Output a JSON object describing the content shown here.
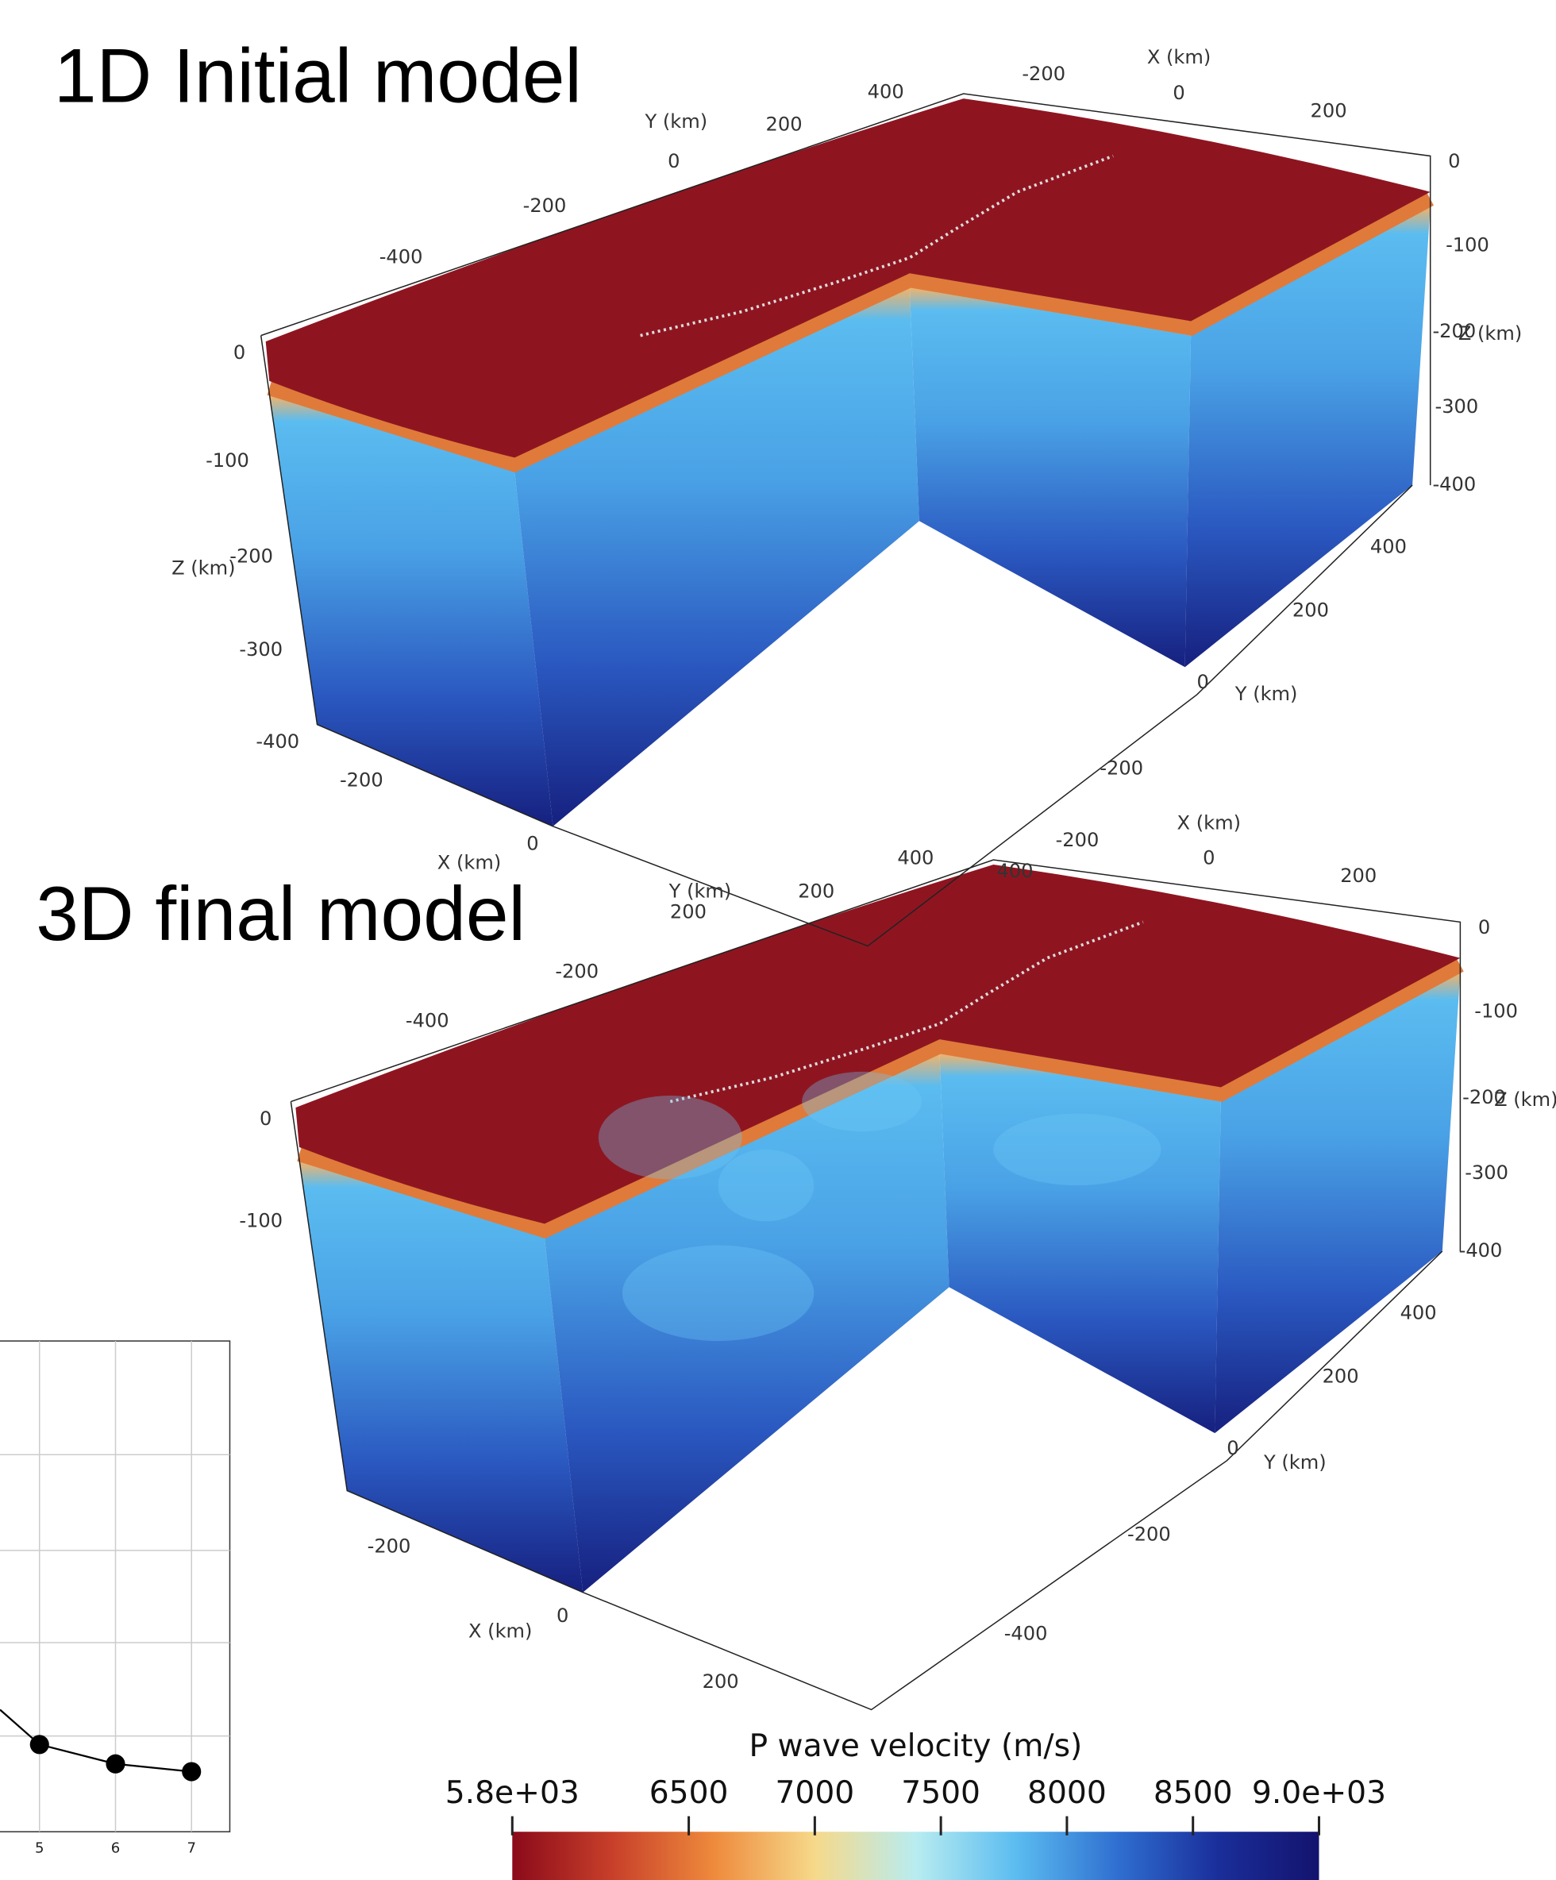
{
  "panels": [
    {
      "title": "1D Initial model",
      "axis_labels": [
        "X (km)",
        "-200",
        "0",
        "200",
        "400",
        "Y (km)",
        "200",
        "0",
        "-200",
        "-400",
        "0",
        "-100",
        "-200",
        "Z (km)",
        "-300",
        "-400",
        "400",
        "200",
        "0",
        "Y (km)",
        "-200",
        "0",
        "-100",
        "-200",
        "Z (km)",
        "-300",
        "-400",
        "-200",
        "0",
        "X (km)"
      ]
    },
    {
      "title": "3D final model",
      "axis_labels": [
        "X (km)",
        "-200",
        "0",
        "200",
        "400",
        "400",
        "Y (km)",
        "200",
        "200",
        "-200",
        "-400",
        "0",
        "-100",
        "-200",
        "Z (km)",
        "-300",
        "-400",
        "400",
        "200",
        "0",
        "Y (km)",
        "-200",
        "-400",
        "0",
        "-100",
        "-200",
        "0",
        "X (km)",
        "200"
      ]
    }
  ],
  "colorbar": {
    "title": "P wave velocity (m/s)",
    "lim": [
      5800,
      9000
    ],
    "ticks": [
      {
        "value": 5800,
        "label": "5.8e+03"
      },
      6500,
      7000,
      7500,
      8000,
      8500,
      {
        "value": 9000,
        "label": "9.0e+03"
      }
    ],
    "colors": [
      "#8b0a1a",
      "#c8402a",
      "#ee8a3c",
      "#f6d98a",
      "#b8ecf0",
      "#5bbcf0",
      "#2f6fd0",
      "#1a2e9a",
      "#13136e"
    ]
  },
  "inset": {
    "type": "line",
    "xticks": [
      5,
      6,
      7
    ],
    "x": [
      5,
      6,
      7
    ],
    "values": [
      0.9,
      0.7,
      0.62
    ],
    "ylim": [
      0,
      5
    ],
    "color": "#000000"
  }
}
